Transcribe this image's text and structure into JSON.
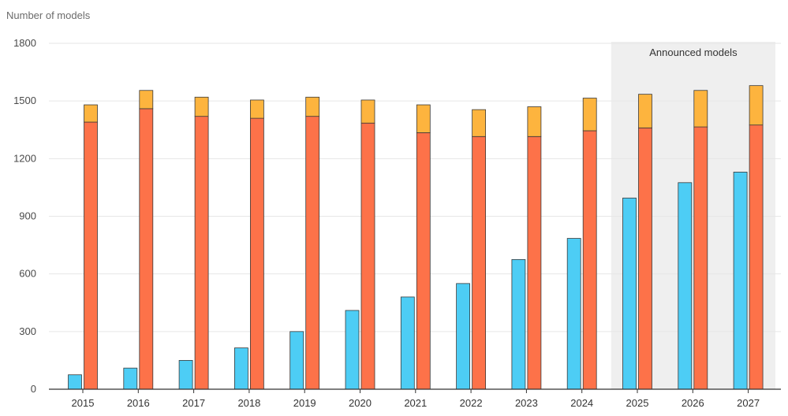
{
  "chart_data": {
    "type": "bar",
    "ylabel": "Number of models",
    "ylim": [
      0,
      1800
    ],
    "yticks": [
      0,
      300,
      600,
      900,
      1200,
      1500,
      1800
    ],
    "grid": true,
    "categories": [
      "2015",
      "2016",
      "2017",
      "2018",
      "2019",
      "2020",
      "2021",
      "2022",
      "2023",
      "2024",
      "2025",
      "2026",
      "2027"
    ],
    "series": [
      {
        "values": [
          75,
          110,
          150,
          215,
          300,
          410,
          480,
          550,
          675,
          785,
          995,
          1075,
          1130
        ],
        "color": "#4dcdf5",
        "stack": "a"
      },
      {
        "values": [
          1390,
          1460,
          1420,
          1410,
          1420,
          1385,
          1335,
          1315,
          1315,
          1345,
          1360,
          1365,
          1375
        ],
        "color": "#fd7249",
        "stack": "b"
      },
      {
        "values": [
          90,
          95,
          100,
          95,
          100,
          120,
          145,
          140,
          155,
          170,
          175,
          190,
          205
        ],
        "color": "#fdb43e",
        "stack": "b"
      }
    ],
    "highlight": {
      "label": "Announced models",
      "categories": [
        "2025",
        "2026",
        "2027"
      ],
      "color": "#efefef"
    }
  }
}
